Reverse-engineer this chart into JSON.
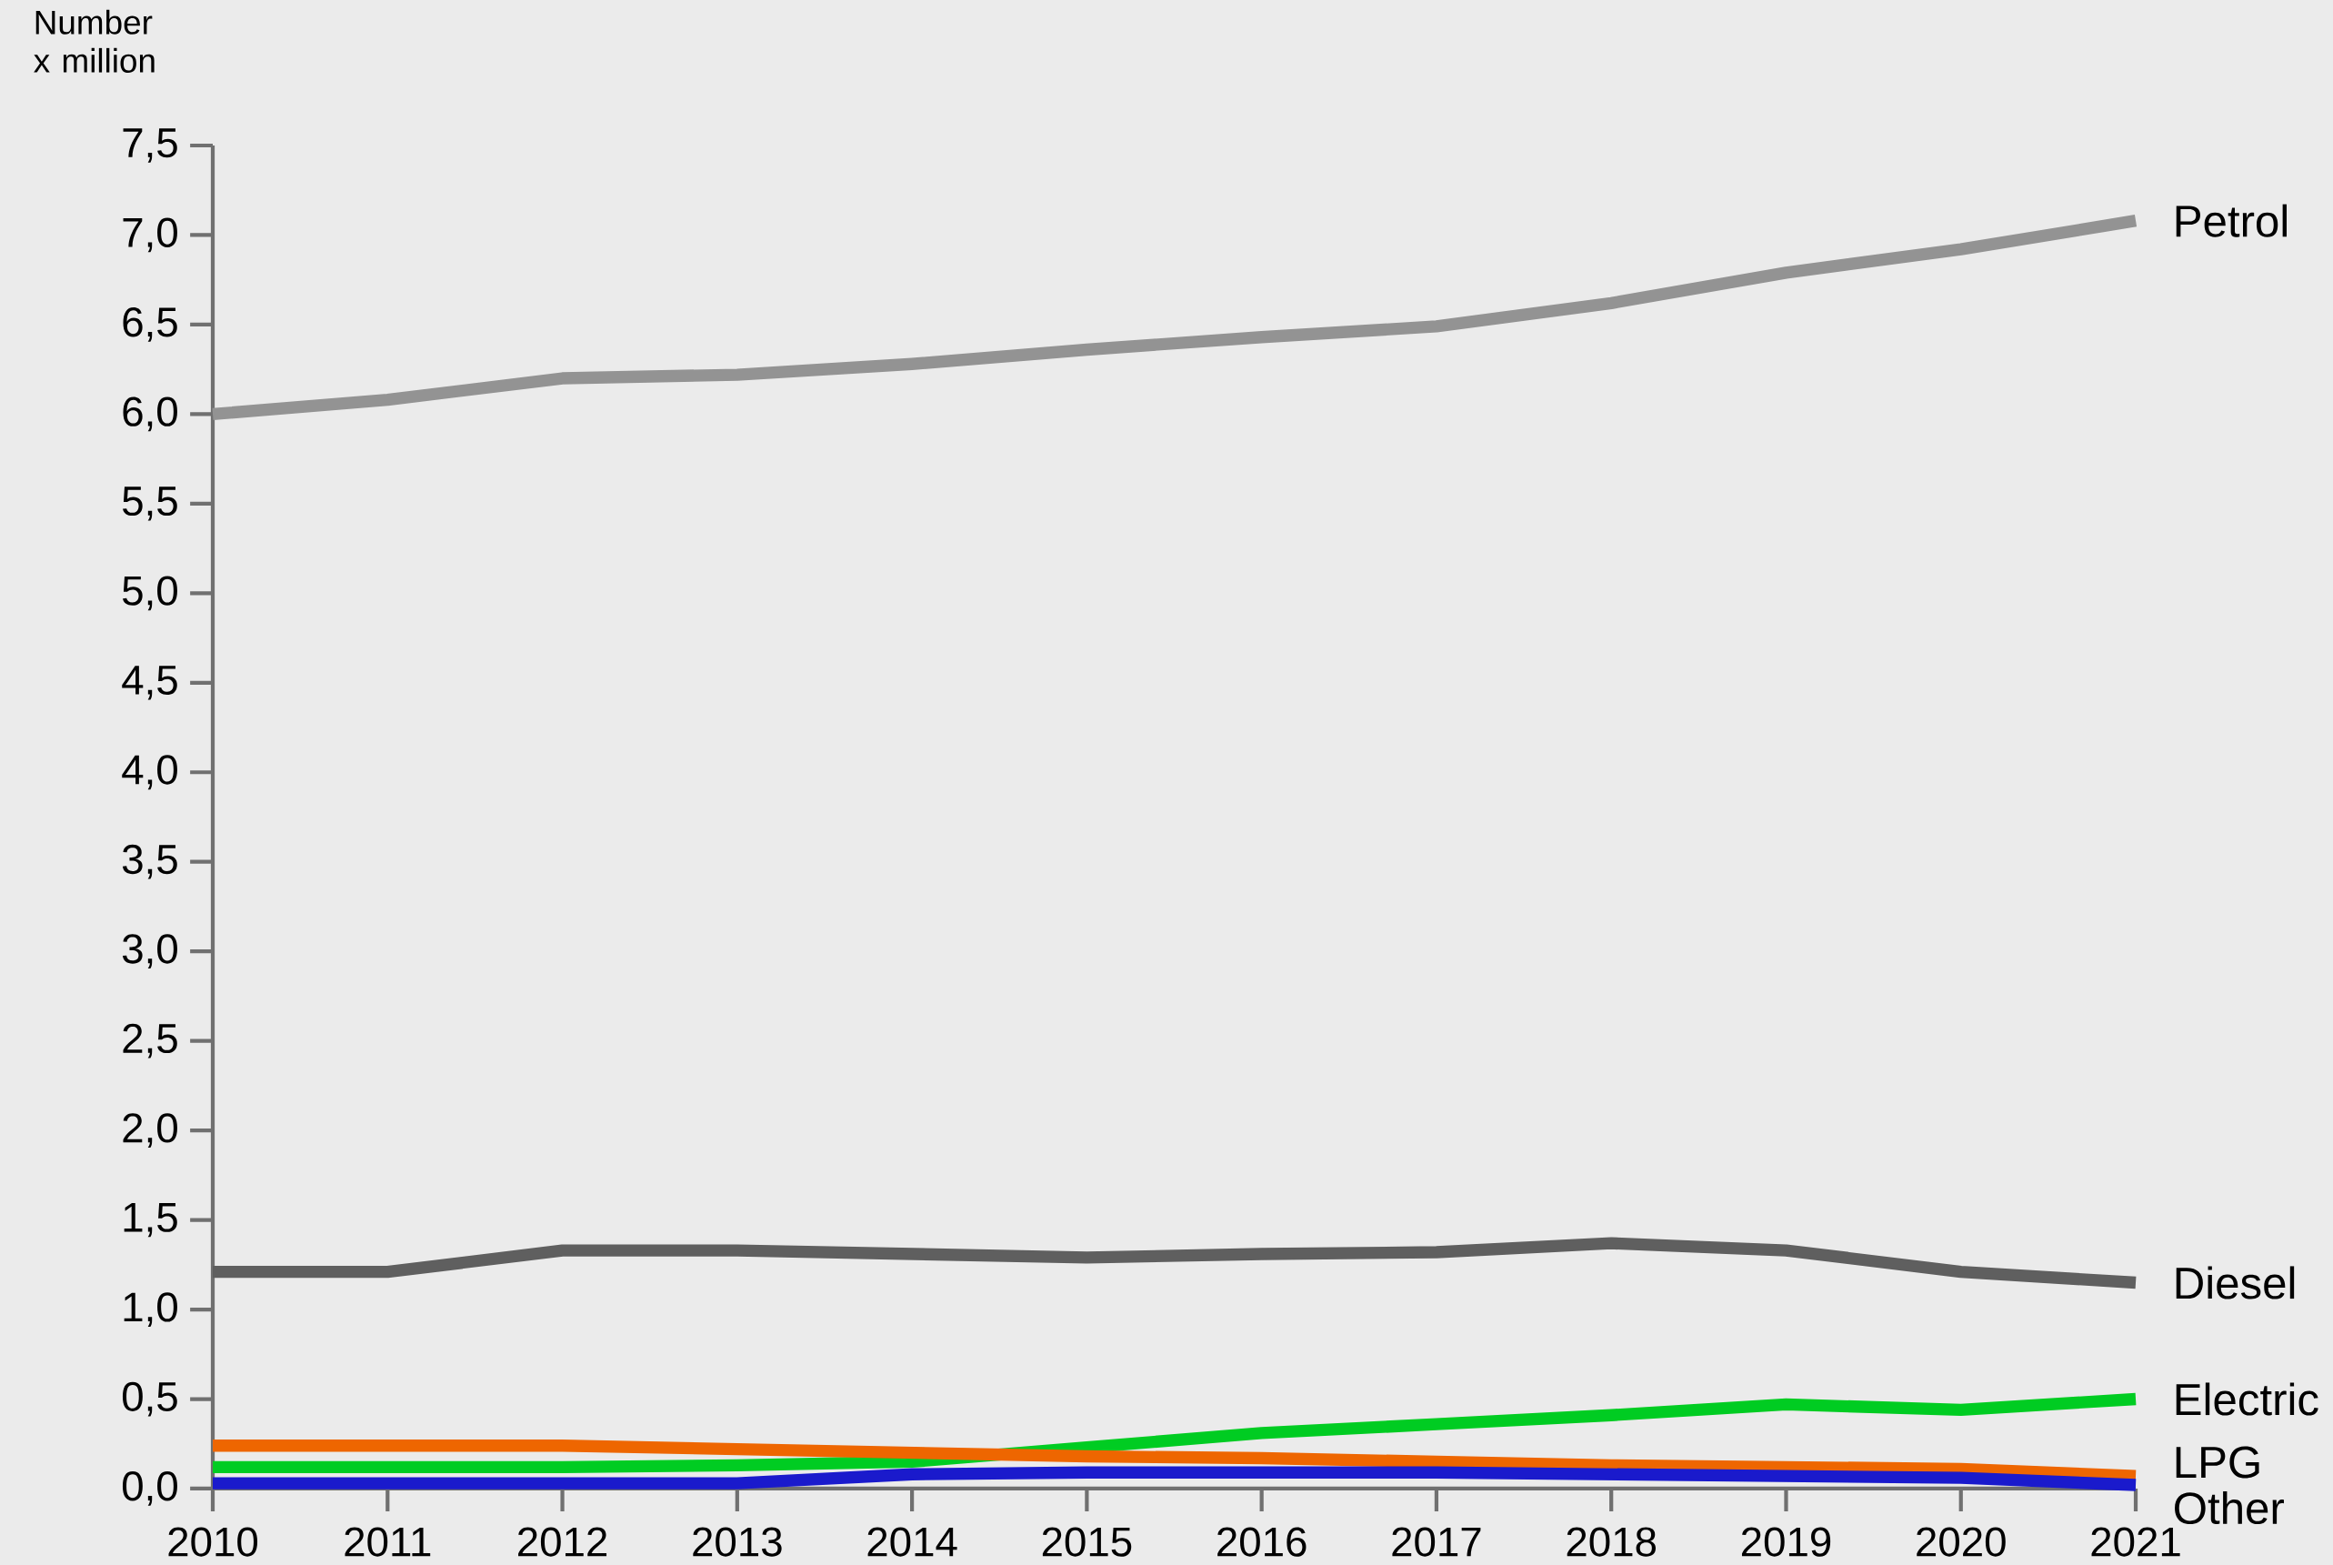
{
  "chart_data": {
    "type": "line",
    "ylabel": "Number x million",
    "x": [
      2010,
      2011,
      2012,
      2013,
      2014,
      2015,
      2016,
      2017,
      2018,
      2019,
      2020,
      2021
    ],
    "xlim": [
      2010,
      2021
    ],
    "xticks": [
      2010,
      2011,
      2012,
      2013,
      2014,
      2015,
      2016,
      2017,
      2018,
      2019,
      2020,
      2021
    ],
    "ylim": [
      0,
      7.5
    ],
    "yticks": [
      {
        "value": 0,
        "label": "0,0"
      },
      {
        "value": 0.5,
        "label": "0,5"
      },
      {
        "value": 1,
        "label": "1,0"
      },
      {
        "value": 1.5,
        "label": "1,5"
      },
      {
        "value": 2,
        "label": "2,0"
      },
      {
        "value": 2.5,
        "label": "2,5"
      },
      {
        "value": 3,
        "label": "3,0"
      },
      {
        "value": 3.5,
        "label": "3,5"
      },
      {
        "value": 4,
        "label": "4,0"
      },
      {
        "value": 4.5,
        "label": "4,5"
      },
      {
        "value": 5,
        "label": "5,0"
      },
      {
        "value": 5.5,
        "label": "5,5"
      },
      {
        "value": 6,
        "label": "6,0"
      },
      {
        "value": 6.5,
        "label": "6,5"
      },
      {
        "value": 7,
        "label": "7,0"
      },
      {
        "value": 7.5,
        "label": "7,5"
      }
    ],
    "grid": false,
    "legend": false,
    "marker": "none",
    "line_style": "solid",
    "series": [
      {
        "name": "Petrol",
        "color": "#939393",
        "values": [
          6.0,
          6.08,
          6.2,
          6.22,
          6.28,
          6.36,
          6.43,
          6.49,
          6.62,
          6.79,
          6.92,
          7.08
        ]
      },
      {
        "name": "Diesel",
        "color": "#5f5f5f",
        "values": [
          1.21,
          1.21,
          1.33,
          1.33,
          1.31,
          1.29,
          1.31,
          1.32,
          1.37,
          1.33,
          1.21,
          1.15
        ]
      },
      {
        "name": "Electric",
        "color": "#00cc22",
        "values": [
          0.12,
          0.12,
          0.12,
          0.13,
          0.15,
          0.23,
          0.31,
          0.36,
          0.41,
          0.47,
          0.44,
          0.5
        ]
      },
      {
        "name": "LPG",
        "color": "#ee6600",
        "values": [
          0.24,
          0.24,
          0.24,
          0.22,
          0.2,
          0.18,
          0.17,
          0.15,
          0.13,
          0.12,
          0.11,
          0.07
        ]
      },
      {
        "name": "Other",
        "color": "#1a1acc",
        "values": [
          0.03,
          0.03,
          0.03,
          0.03,
          0.08,
          0.09,
          0.09,
          0.09,
          0.08,
          0.07,
          0.06,
          0.02
        ]
      }
    ]
  }
}
